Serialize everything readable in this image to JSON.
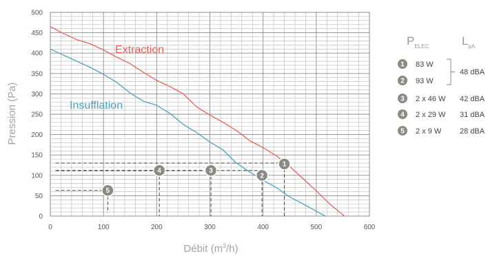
{
  "chart_data": {
    "type": "line",
    "xlabel_main": "Débit (m",
    "xlabel_sup": "3",
    "xlabel_end": "/h)",
    "ylabel": "Pression (Pa)",
    "xlim": [
      0,
      600
    ],
    "ylim": [
      0,
      500
    ],
    "x_ticks": [
      0,
      100,
      200,
      300,
      400,
      500,
      600
    ],
    "y_ticks": [
      0,
      50,
      100,
      150,
      200,
      250,
      300,
      350,
      400,
      450,
      500
    ],
    "grid": true,
    "series": [
      {
        "name": "Extraction",
        "color": "#e8605a",
        "x": [
          0,
          25,
          50,
          75,
          100,
          125,
          150,
          175,
          200,
          225,
          250,
          275,
          300,
          325,
          350,
          375,
          400,
          425,
          450,
          475,
          500,
          525,
          553
        ],
        "y": [
          465,
          448,
          433,
          423,
          408,
          390,
          374,
          353,
          333,
          318,
          300,
          268,
          248,
          230,
          210,
          185,
          168,
          148,
          122,
          92,
          62,
          30,
          0
        ]
      },
      {
        "name": "Insufflation",
        "color": "#4aa3bf",
        "x": [
          0,
          25,
          50,
          75,
          100,
          125,
          150,
          175,
          200,
          225,
          250,
          275,
          300,
          325,
          350,
          375,
          400,
          425,
          450,
          475,
          500,
          517
        ],
        "y": [
          410,
          395,
          380,
          365,
          348,
          328,
          302,
          282,
          272,
          252,
          225,
          205,
          182,
          162,
          130,
          108,
          88,
          70,
          47,
          30,
          12,
          0
        ]
      }
    ],
    "markers": [
      {
        "label": "1",
        "x": 440,
        "y": 128,
        "ref_x": 440,
        "ref_y": 130
      },
      {
        "label": "2",
        "x": 398,
        "y": 100,
        "ref_x": 398,
        "ref_y": 112
      },
      {
        "label": "3",
        "x": 302,
        "y": 112,
        "ref_x": 302,
        "ref_y": 112
      },
      {
        "label": "4",
        "x": 205,
        "y": 112,
        "ref_x": 205,
        "ref_y": 112
      },
      {
        "label": "5",
        "x": 108,
        "y": 63,
        "ref_x": 108,
        "ref_y": 63
      }
    ],
    "marker_color": "#8a8c84",
    "legend": {
      "col1_main": "P",
      "col1_sub": "ELEC",
      "col2_main": "L",
      "col2_sub": "pA",
      "rows": [
        {
          "num": "1",
          "power": "83 W",
          "level": ""
        },
        {
          "num": "2",
          "power": "93 W",
          "level": ""
        },
        {
          "num": "3",
          "power": "2 x 46 W",
          "level": "42 dBA"
        },
        {
          "num": "4",
          "power": "2 x 29 W",
          "level": "31 dBA"
        },
        {
          "num": "5",
          "power": "2 x 9 W",
          "level": "28 dBA"
        }
      ],
      "shared_level": "48 dBA"
    }
  }
}
